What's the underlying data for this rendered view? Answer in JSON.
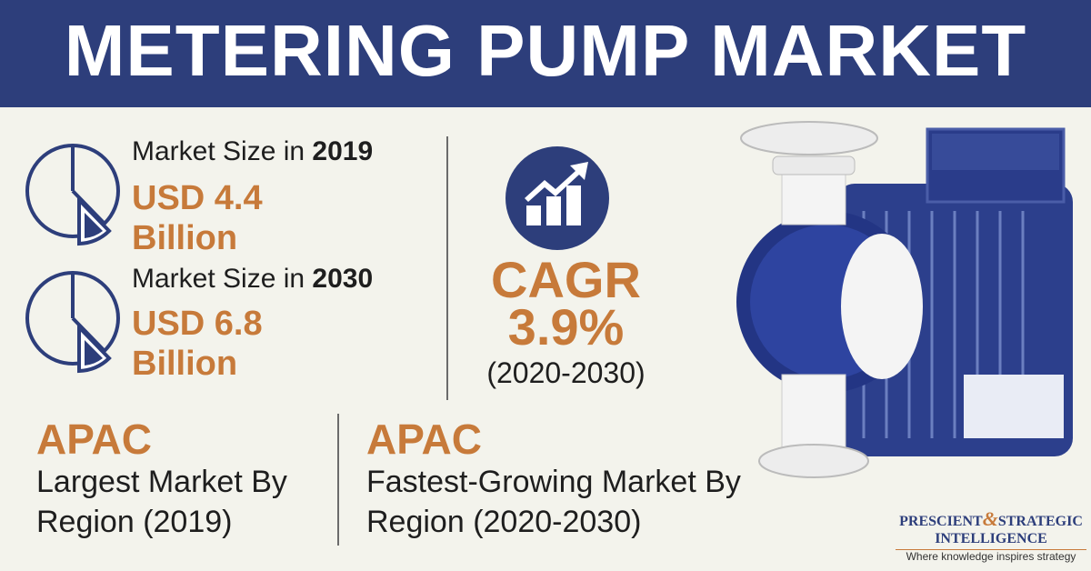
{
  "header": {
    "title": "METERING PUMP MARKET"
  },
  "stats": [
    {
      "label": "Market Size in",
      "year": "2019",
      "currency": "USD",
      "amount": "4.4",
      "unit": "Billion"
    },
    {
      "label": "Market Size in",
      "year": "2030",
      "currency": "USD",
      "amount": "6.8",
      "unit": "Billion"
    }
  ],
  "cagr": {
    "label": "CAGR",
    "value": "3.9%",
    "period": "(2020-2030)"
  },
  "regions": [
    {
      "name": "APAC",
      "description": "Largest Market By Region (2019)"
    },
    {
      "name": "APAC",
      "description": "Fastest-Growing Market By Region (2020-2030)"
    }
  ],
  "logo": {
    "word1": "PRESCIENT",
    "amp": "&",
    "word2": "STRATEGIC",
    "word3": "INTELLIGENCE",
    "tagline": "Where knowledge inspires strategy"
  }
}
